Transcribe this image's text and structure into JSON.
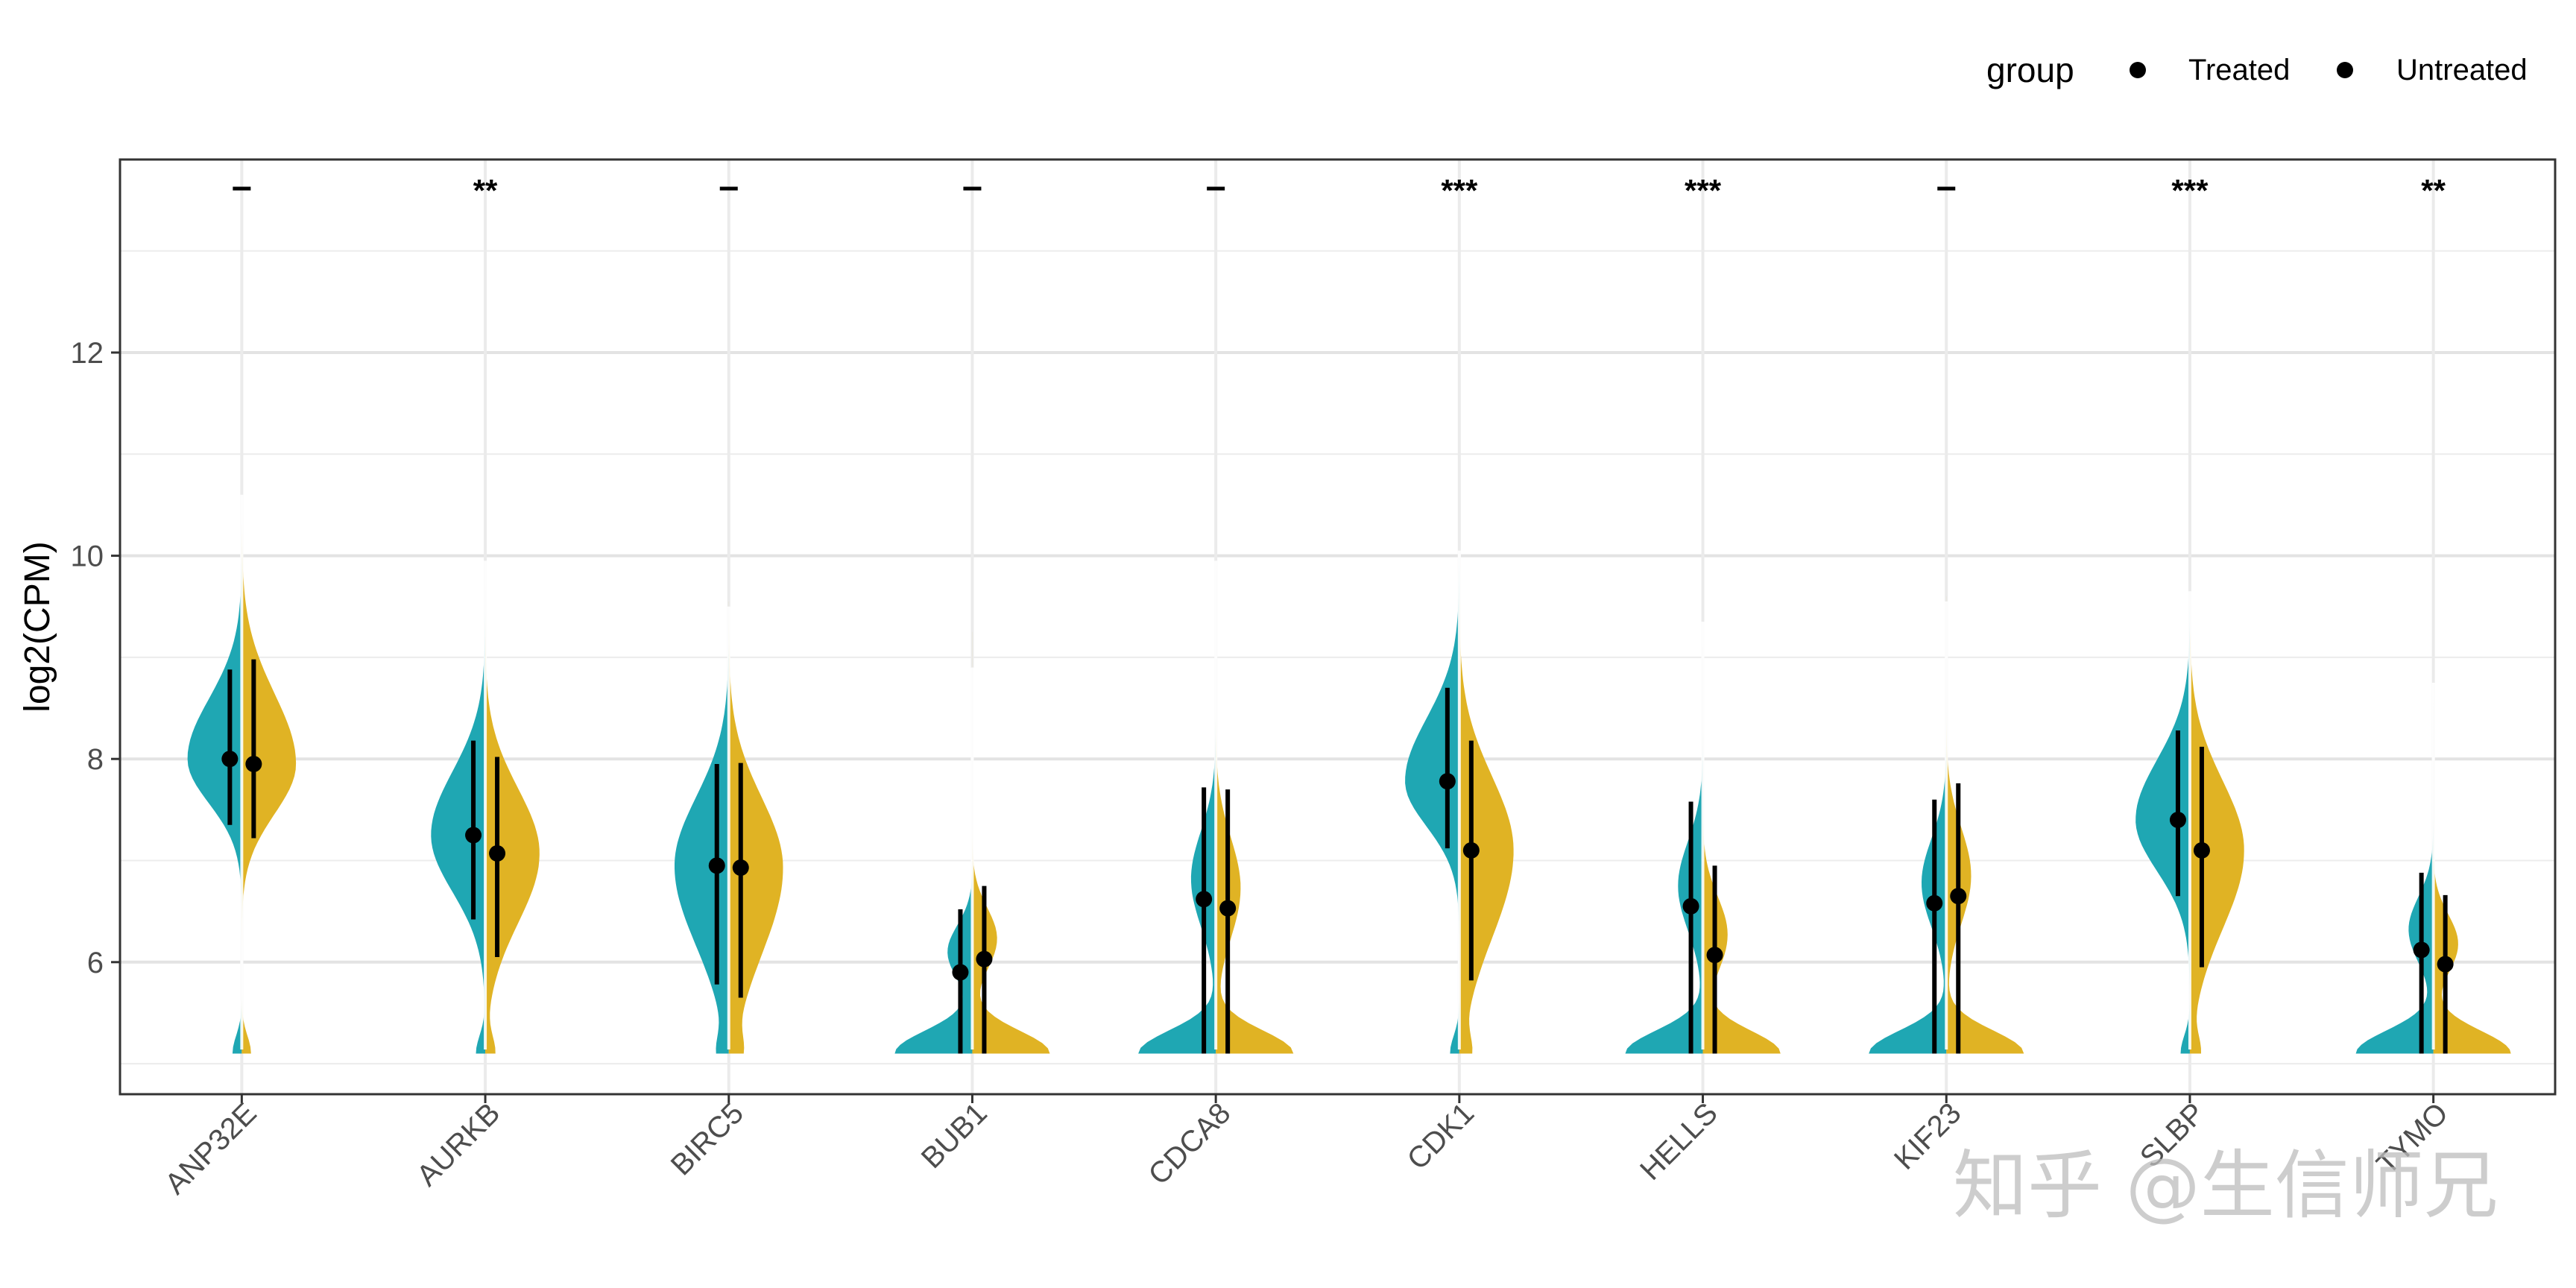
{
  "chart_data": {
    "type": "violin",
    "ylabel": "log2(CPM)",
    "xlabel": "",
    "ylim": [
      4.7,
      13.9
    ],
    "y_ticks": [
      6,
      8,
      10,
      12
    ],
    "grid": true,
    "legend": {
      "title": "group",
      "position": "top-right",
      "entries": [
        "Treated",
        "Untreated"
      ]
    },
    "colors": {
      "Treated": "#1fa7b3",
      "Untreated": "#e0b324"
    },
    "categories": [
      "ANP32E",
      "AURKB",
      "BIRC5",
      "BUB1",
      "CDCA8",
      "CDK1",
      "HELLS",
      "KIF23",
      "SLBP",
      "TYMO"
    ],
    "significance": [
      "–",
      "**",
      "–",
      "–",
      "–",
      "***",
      "***",
      "–",
      "***",
      "**"
    ],
    "series": [
      {
        "name": "Treated",
        "median": [
          8.0,
          7.25,
          6.95,
          5.9,
          6.62,
          7.78,
          6.55,
          6.58,
          7.4,
          6.12
        ],
        "lower": [
          7.35,
          6.42,
          5.78,
          5.1,
          5.1,
          7.12,
          5.1,
          5.1,
          6.65,
          5.1
        ],
        "upper": [
          8.88,
          8.18,
          7.95,
          6.52,
          7.72,
          8.7,
          7.58,
          7.6,
          8.28,
          6.88
        ],
        "min": [
          5.1,
          5.1,
          5.1,
          5.1,
          5.1,
          5.1,
          5.1,
          5.1,
          5.1,
          5.1
        ],
        "max": [
          10.25,
          9.6,
          9.15,
          8.55,
          9.6,
          10.05,
          9.1,
          9.2,
          9.65,
          8.55
        ]
      },
      {
        "name": "Untreated",
        "median": [
          7.95,
          7.07,
          6.93,
          6.03,
          6.53,
          7.1,
          6.07,
          6.65,
          7.1,
          5.98
        ],
        "lower": [
          7.22,
          6.05,
          5.65,
          5.1,
          5.1,
          5.82,
          5.1,
          5.1,
          5.95,
          5.1
        ],
        "upper": [
          8.98,
          8.02,
          7.96,
          6.75,
          7.7,
          8.18,
          6.95,
          7.76,
          8.12,
          6.66
        ],
        "min": [
          5.1,
          5.1,
          5.1,
          5.1,
          5.1,
          5.1,
          5.1,
          5.1,
          5.1,
          5.1
        ],
        "max": [
          10.3,
          9.7,
          9.55,
          9.25,
          9.9,
          9.7,
          9.0,
          9.6,
          9.3,
          8.4
        ]
      }
    ]
  },
  "watermark": "知乎 @生信师兄"
}
